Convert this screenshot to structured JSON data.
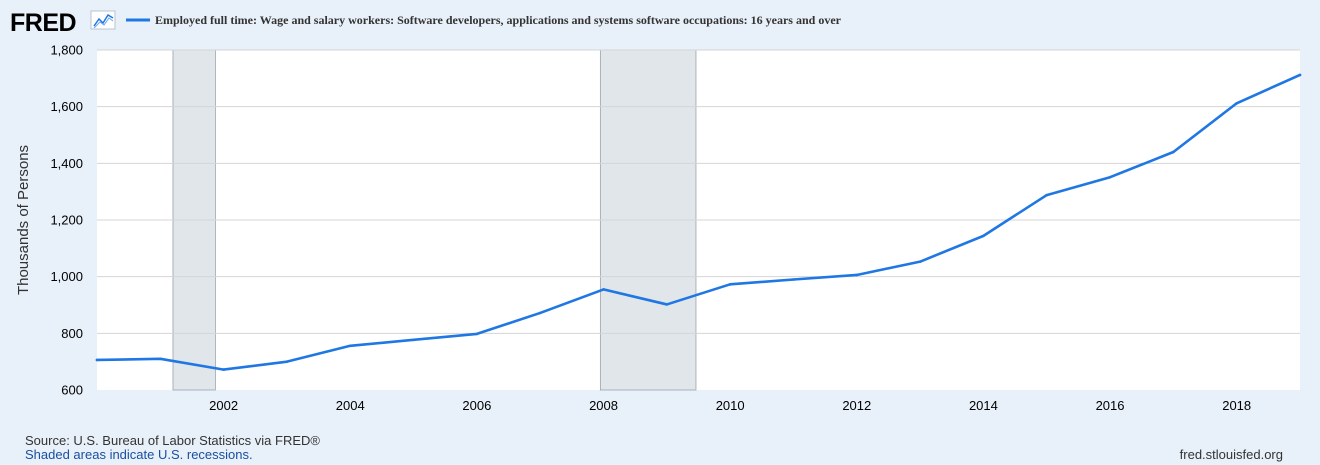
{
  "header": {
    "logo_text": "FRED",
    "logo_icon": "trend-line-icon"
  },
  "colors": {
    "series": "#1f77e4",
    "recession": "#e1e6eb",
    "grid": "#d5d5d5",
    "plot_background": "#ffffff",
    "page_background": "#e8f0f9"
  },
  "chart_data": {
    "type": "line",
    "title": "",
    "series": [
      {
        "name": "Employed full time: Wage and salary workers: Software developers, applications and systems software occupations: 16 years and over",
        "x": [
          2000,
          2001,
          2002,
          2003,
          2004,
          2005,
          2006,
          2007,
          2008,
          2009,
          2010,
          2011,
          2012,
          2013,
          2014,
          2015,
          2016,
          2017,
          2018,
          2019
        ],
        "values": [
          706,
          710,
          672,
          700,
          756,
          777,
          798,
          872,
          955,
          902,
          973,
          990,
          1006,
          1053,
          1144,
          1288,
          1351,
          1440,
          1612,
          1712
        ]
      }
    ],
    "xlabel": "",
    "ylabel": "Thousands of Persons",
    "xlim": [
      2000,
      2019
    ],
    "ylim": [
      600,
      1800
    ],
    "x_ticks": [
      2002,
      2004,
      2006,
      2008,
      2010,
      2012,
      2014,
      2016,
      2018
    ],
    "y_ticks": [
      600,
      800,
      1000,
      1200,
      1400,
      1600,
      1800
    ],
    "y_tick_labels": [
      "600",
      "800",
      "1,000",
      "1,200",
      "1,400",
      "1,600",
      "1,800"
    ],
    "recessions": [
      {
        "start": 2001.2,
        "end": 2001.87
      },
      {
        "start": 2007.95,
        "end": 2009.46
      }
    ],
    "grid": true,
    "legend_position": "top"
  },
  "footer": {
    "source": "Source: U.S. Bureau of Labor Statistics via FRED®",
    "recession_note": "Shaded areas indicate U.S. recessions.",
    "site": "fred.stlouisfed.org"
  }
}
